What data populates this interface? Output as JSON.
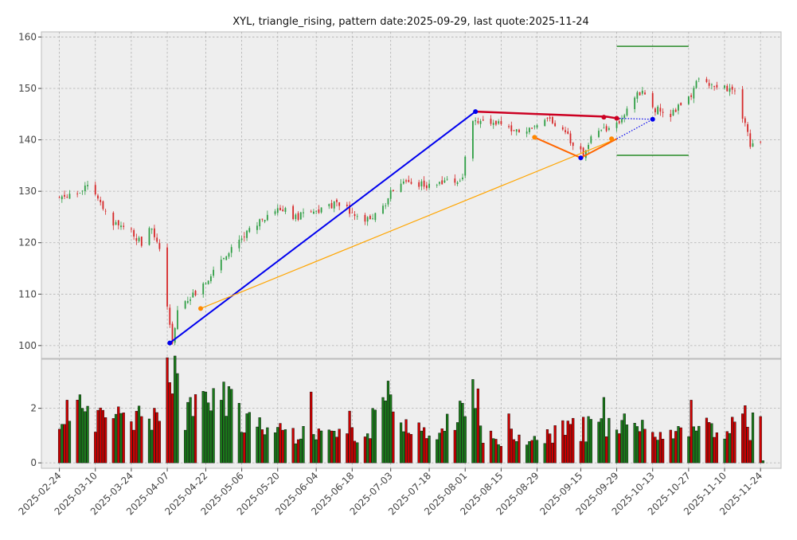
{
  "chart_data": {
    "type": "candlestick",
    "title": "XYL, triangle_rising, pattern date:2025-09-29, last quote:2025-11-24",
    "price_ylim": [
      97.5,
      161
    ],
    "price_yticks": [
      100,
      110,
      120,
      130,
      140,
      150,
      160
    ],
    "volume_ylim": [
      -0.2,
      3.8
    ],
    "volume_yticks": [
      0,
      2
    ],
    "x_range": [
      "2025-02-17",
      "2025-12-02"
    ],
    "x_ticks": [
      "2025-02-24",
      "2025-03-10",
      "2025-03-24",
      "2025-04-07",
      "2025-04-22",
      "2025-05-06",
      "2025-05-20",
      "2025-06-04",
      "2025-06-18",
      "2025-07-03",
      "2025-07-18",
      "2025-08-01",
      "2025-08-15",
      "2025-08-29",
      "2025-09-15",
      "2025-09-29",
      "2025-10-13",
      "2025-10-27",
      "2025-11-10",
      "2025-11-24"
    ],
    "colors": {
      "up": "#2e9e44",
      "down": "#d62728",
      "vol_up": "#1a7a1a",
      "vol_down": "#cc0000"
    },
    "price_anchors": [
      [
        "2025-02-24",
        128.5
      ],
      [
        "2025-03-03",
        129.5
      ],
      [
        "2025-03-07",
        131
      ],
      [
        "2025-03-12",
        128
      ],
      [
        "2025-03-17",
        124
      ],
      [
        "2025-03-24",
        122
      ],
      [
        "2025-03-28",
        120
      ],
      [
        "2025-04-01",
        123
      ],
      [
        "2025-04-04",
        119
      ],
      [
        "2025-04-08",
        104
      ],
      [
        "2025-04-09",
        101
      ],
      [
        "2025-04-11",
        107
      ],
      [
        "2025-04-17",
        110
      ],
      [
        "2025-04-22",
        112
      ],
      [
        "2025-04-25",
        115
      ],
      [
        "2025-05-01",
        118
      ],
      [
        "2025-05-06",
        121
      ],
      [
        "2025-05-12",
        124
      ],
      [
        "2025-05-20",
        127
      ],
      [
        "2025-05-27",
        125
      ],
      [
        "2025-06-04",
        126
      ],
      [
        "2025-06-11",
        127.5
      ],
      [
        "2025-06-18",
        126
      ],
      [
        "2025-06-23",
        124
      ],
      [
        "2025-07-01",
        127
      ],
      [
        "2025-07-03",
        130
      ],
      [
        "2025-07-08",
        132
      ],
      [
        "2025-07-18",
        131
      ],
      [
        "2025-07-25",
        132
      ],
      [
        "2025-07-31",
        132
      ],
      [
        "2025-08-01",
        137
      ],
      [
        "2025-08-04",
        144
      ],
      [
        "2025-08-07",
        143.5
      ],
      [
        "2025-08-14",
        143
      ],
      [
        "2025-08-21",
        142
      ],
      [
        "2025-08-28",
        142
      ],
      [
        "2025-09-02",
        144
      ],
      [
        "2025-09-05",
        143
      ],
      [
        "2025-09-11",
        140
      ],
      [
        "2025-09-16",
        137
      ],
      [
        "2025-09-19",
        141
      ],
      [
        "2025-09-24",
        142
      ],
      [
        "2025-09-29",
        143
      ],
      [
        "2025-10-01",
        144
      ],
      [
        "2025-10-06",
        148
      ],
      [
        "2025-10-09",
        150
      ],
      [
        "2025-10-14",
        146
      ],
      [
        "2025-10-20",
        145
      ],
      [
        "2025-10-24",
        147
      ],
      [
        "2025-10-28",
        149
      ],
      [
        "2025-10-31",
        152
      ],
      [
        "2025-11-05",
        151
      ],
      [
        "2025-11-10",
        150
      ],
      [
        "2025-11-14",
        150
      ],
      [
        "2025-11-18",
        143
      ],
      [
        "2025-11-20",
        139
      ],
      [
        "2025-11-24",
        140
      ]
    ],
    "volume_anchors": [
      [
        "2025-02-24",
        1.6
      ],
      [
        "2025-03-03",
        2.0
      ],
      [
        "2025-03-10",
        1.5
      ],
      [
        "2025-03-21",
        1.8
      ],
      [
        "2025-03-24",
        1.5
      ],
      [
        "2025-04-03",
        1.7
      ],
      [
        "2025-04-07",
        3.2
      ],
      [
        "2025-04-09",
        3.7
      ],
      [
        "2025-04-14",
        1.9
      ],
      [
        "2025-04-22",
        2.0
      ],
      [
        "2025-05-01",
        2.3
      ],
      [
        "2025-05-06",
        1.8
      ],
      [
        "2025-05-14",
        1.2
      ],
      [
        "2025-06-04",
        1.0
      ],
      [
        "2025-06-18",
        1.0
      ],
      [
        "2025-07-03",
        2.0
      ],
      [
        "2025-07-18",
        0.9
      ],
      [
        "2025-08-01",
        2.0
      ],
      [
        "2025-08-04",
        3.5
      ],
      [
        "2025-08-08",
        1.2
      ],
      [
        "2025-08-15",
        0.9
      ],
      [
        "2025-08-29",
        1.0
      ],
      [
        "2025-09-15",
        1.3
      ],
      [
        "2025-09-29",
        1.2
      ],
      [
        "2025-10-06",
        1.4
      ],
      [
        "2025-10-13",
        1.0
      ],
      [
        "2025-10-27",
        1.3
      ],
      [
        "2025-11-10",
        1.2
      ],
      [
        "2025-11-14",
        1.3
      ],
      [
        "2025-11-24",
        1.4
      ]
    ],
    "volume_spikes": [
      [
        "2025-02-27",
        2.3
      ],
      [
        "2025-03-04",
        2.5
      ],
      [
        "2025-04-16",
        2.4
      ],
      [
        "2025-04-28",
        2.3
      ],
      [
        "2025-05-01",
        2.8
      ],
      [
        "2025-05-02",
        2.7
      ],
      [
        "2025-06-02",
        2.6
      ],
      [
        "2025-06-17",
        1.9
      ],
      [
        "2025-06-26",
        2.0
      ],
      [
        "2025-07-02",
        3.0
      ],
      [
        "2025-07-03",
        2.5
      ],
      [
        "2025-08-01",
        1.7
      ],
      [
        "2025-08-05",
        2.0
      ],
      [
        "2025-08-18",
        1.8
      ],
      [
        "2025-09-18",
        1.7
      ],
      [
        "2025-09-24",
        2.4
      ],
      [
        "2025-10-02",
        1.8
      ],
      [
        "2025-10-28",
        2.3
      ],
      [
        "2025-11-17",
        1.8
      ],
      [
        "2025-11-18",
        2.1
      ],
      [
        "2025-11-24",
        1.7
      ],
      [
        "2025-11-25",
        0.08
      ]
    ],
    "overlays": [
      {
        "name": "blue-trendline",
        "color": "#0000ee",
        "width": 2,
        "dash": "",
        "points": [
          [
            "2025-04-08",
            100.5
          ],
          [
            "2025-08-05",
            145.5
          ]
        ]
      },
      {
        "name": "red-resistance",
        "color": "#cc0022",
        "width": 2.5,
        "dash": "",
        "points": [
          [
            "2025-08-05",
            145.5
          ],
          [
            "2025-09-25",
            144.5
          ],
          [
            "2025-09-29",
            144.2
          ]
        ],
        "markers": true
      },
      {
        "name": "red-blue-dotted",
        "color": "#0000ee",
        "width": 1.2,
        "dash": "1.5 2",
        "points": [
          [
            "2025-09-29",
            144.2
          ],
          [
            "2025-10-13",
            144
          ]
        ],
        "markers": true
      },
      {
        "name": "orange-support",
        "color": "#ffa500",
        "width": 1.2,
        "dash": "",
        "points": [
          [
            "2025-04-20",
            107.2
          ],
          [
            "2025-09-29",
            140.2
          ]
        ]
      },
      {
        "name": "orange-triangle",
        "color": "#ff6600",
        "width": 2,
        "dash": "",
        "points": [
          [
            "2025-08-28",
            140.5
          ],
          [
            "2025-09-15",
            136.5
          ],
          [
            "2025-09-29",
            140.2
          ]
        ],
        "markers": true
      },
      {
        "name": "blue-dotted-support",
        "color": "#0000ee",
        "width": 1.2,
        "dash": "1.5 2",
        "points": [
          [
            "2025-09-29",
            140.2
          ],
          [
            "2025-10-13",
            144
          ]
        ]
      },
      {
        "name": "upper-target",
        "color": "#007700",
        "width": 1.2,
        "dash": "",
        "points": [
          [
            "2025-09-29",
            158.2
          ],
          [
            "2025-10-27",
            158.2
          ]
        ]
      },
      {
        "name": "lower-target",
        "color": "#007700",
        "width": 1.2,
        "dash": "",
        "points": [
          [
            "2025-09-29",
            137
          ],
          [
            "2025-10-27",
            137
          ]
        ]
      }
    ],
    "overlay_markers": [
      {
        "color": "#0000ee",
        "points": [
          [
            "2025-04-08",
            100.5
          ],
          [
            "2025-08-05",
            145.5
          ],
          [
            "2025-09-15",
            136.5
          ],
          [
            "2025-10-13",
            144
          ]
        ]
      },
      {
        "color": "#cc0022",
        "points": [
          [
            "2025-09-24",
            144.4
          ],
          [
            "2025-09-29",
            144.2
          ]
        ]
      },
      {
        "color": "#ff8800",
        "points": [
          [
            "2025-04-20",
            107.2
          ],
          [
            "2025-08-28",
            140.5
          ],
          [
            "2025-09-27",
            140.2
          ]
        ]
      }
    ],
    "grid": true,
    "legend": "none"
  }
}
